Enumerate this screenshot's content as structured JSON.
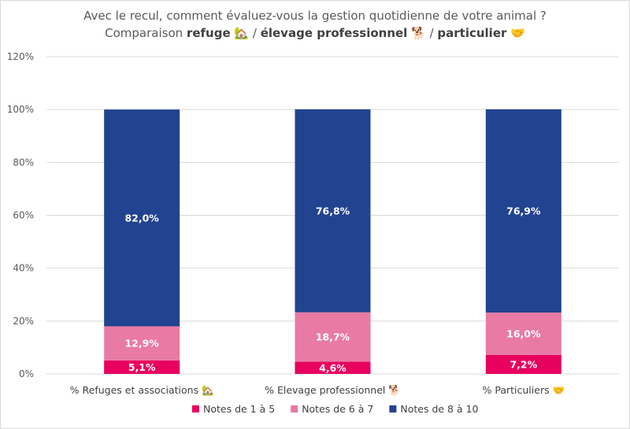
{
  "title": {
    "line1": "Avec le recul, comment évaluez-vous la gestion quotidienne de votre animal ?",
    "line2_prefix": "Comparaison",
    "seg1": "refuge",
    "icon1": "🏡",
    "sep1": " / ",
    "seg2": "élevage professionnel",
    "icon2": "🐕",
    "sep2": " / ",
    "seg3": "particulier",
    "icon3": "🤝"
  },
  "chart_data": {
    "type": "bar",
    "stacked": true,
    "categories": [
      "% Refuges et associations 🏡",
      "% Elevage professionnel 🐕",
      "% Particuliers 🤝"
    ],
    "series": [
      {
        "name": "Notes de 1 à 5",
        "values": [
          5.1,
          4.6,
          7.2
        ],
        "labels": [
          "5,1%",
          "4,6%",
          "7,2%"
        ],
        "color": "#e8005f"
      },
      {
        "name": "Notes de 6 à 7",
        "values": [
          12.9,
          18.7,
          16.0
        ],
        "labels": [
          "12,9%",
          "18,7%",
          "16,0%"
        ],
        "color": "#e87aa3"
      },
      {
        "name": "Notes de 8 à 10",
        "values": [
          82.0,
          76.8,
          76.9
        ],
        "labels": [
          "82,0%",
          "76,8%",
          "76,9%"
        ],
        "color": "#22438f"
      }
    ],
    "ylim": [
      0,
      120
    ],
    "yticks": [
      0,
      20,
      40,
      60,
      80,
      100,
      120
    ],
    "ytick_labels": [
      "0%",
      "20%",
      "40%",
      "60%",
      "80%",
      "100%",
      "120%"
    ],
    "grid": true,
    "legend": "bottom"
  }
}
